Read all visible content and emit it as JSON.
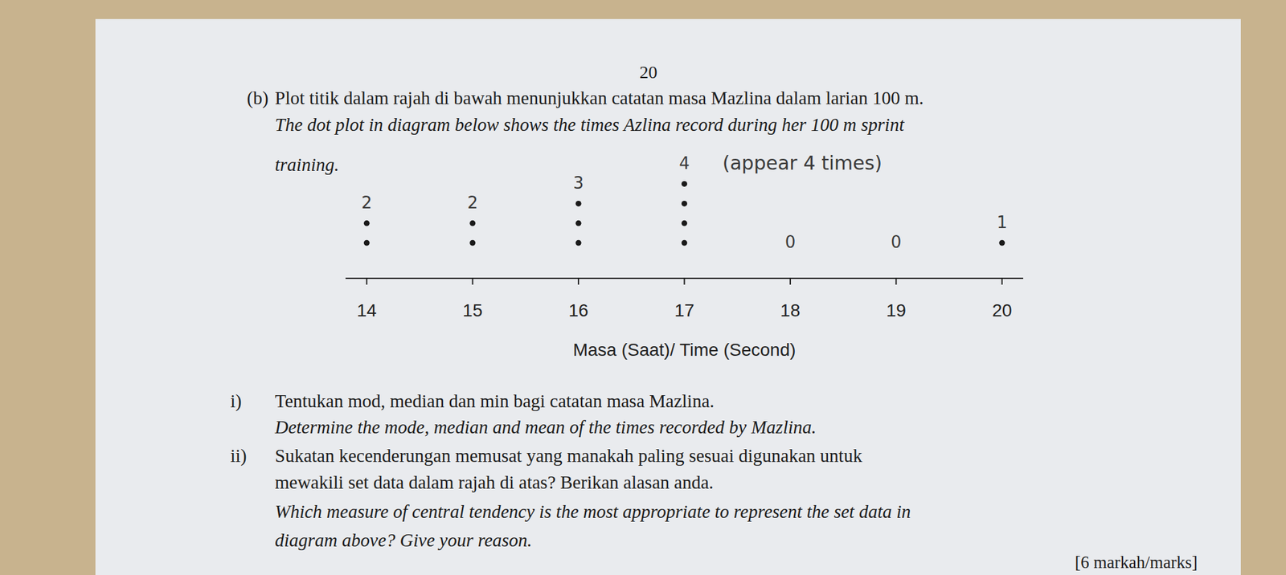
{
  "page_number": "20",
  "question": {
    "label": "(b)",
    "text_ms": [
      "Plot titik dalam rajah di bawah menunjukkan catatan masa Mazlina dalam larian 100 m."
    ],
    "text_en": [
      "The dot plot in diagram below shows the times Azlina record during her 100 m sprint",
      "training."
    ]
  },
  "chart_data": {
    "type": "scatter",
    "marker": "circle",
    "color": "#1a1a1a",
    "x": [
      14,
      14,
      15,
      15,
      16,
      16,
      16,
      17,
      17,
      17,
      17,
      20
    ],
    "values": [
      1,
      2,
      1,
      2,
      1,
      2,
      3,
      1,
      2,
      3,
      4,
      1
    ],
    "xlim": [
      13.8,
      20.2
    ],
    "xticks": [
      14,
      15,
      16,
      17,
      18,
      19,
      20
    ],
    "ylim": [
      -0.8,
      5.5
    ],
    "tick_labels": "x",
    "xlabel": "Masa (Saat)/ Time (Second)",
    "annotations": [
      {
        "x": 14,
        "text": "2"
      },
      {
        "x": 15,
        "text": "2"
      },
      {
        "x": 16,
        "text": "3"
      },
      {
        "x": 17,
        "text": "4"
      },
      {
        "x": 18,
        "text": "0"
      },
      {
        "x": 19,
        "text": "0"
      },
      {
        "x": 20,
        "text": "1"
      }
    ],
    "note": {
      "x": 17,
      "text": "(appear 4 times)"
    }
  },
  "parts": [
    {
      "label": "i)",
      "text_ms": [
        "Tentukan mod, median dan min bagi catatan masa Mazlina."
      ],
      "text_en": [
        "Determine the mode, median and mean of the times recorded by Mazlina."
      ]
    },
    {
      "label": "ii)",
      "text_ms": [
        "Sukatan kecenderungan memusat yang manakah paling sesuai digunakan untuk",
        "mewakili set data dalam rajah di atas? Berikan alasan anda."
      ],
      "text_en": [
        "Which measure of central tendency is the most appropriate to represent the set data in",
        "diagram above? Give your reason."
      ]
    }
  ],
  "marks": "[6 markah/marks]"
}
